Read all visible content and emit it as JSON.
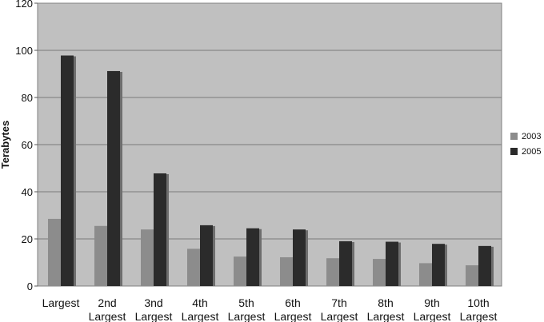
{
  "chart_data": {
    "type": "bar",
    "ylabel": "Terabytes",
    "xlabel": "",
    "title": "",
    "ylim": [
      0,
      120
    ],
    "yticks": [
      0,
      20,
      40,
      60,
      80,
      100,
      120
    ],
    "grid": true,
    "legend_position": "right",
    "categories": [
      [
        "Largest"
      ],
      [
        "2nd",
        "Largest"
      ],
      [
        "3nd",
        "Largest"
      ],
      [
        "4th",
        "Largest"
      ],
      [
        "5th",
        "Largest"
      ],
      [
        "6th",
        "Largest"
      ],
      [
        "7th",
        "Largest"
      ],
      [
        "8th",
        "Largest"
      ],
      [
        "9th",
        "Largest"
      ],
      [
        "10th",
        "Largest"
      ]
    ],
    "series": [
      {
        "name": "2003",
        "color": "#8c8c8c",
        "values": [
          28.5,
          25.5,
          24,
          15.8,
          12.5,
          12.2,
          11.8,
          11.5,
          9.7,
          8.8
        ]
      },
      {
        "name": "2005",
        "color": "#2b2b2b",
        "values": [
          97.8,
          91.2,
          47.8,
          25.8,
          24.5,
          24,
          19,
          18.8,
          17.9,
          17
        ]
      }
    ],
    "background_color": "#c0c0c0"
  }
}
